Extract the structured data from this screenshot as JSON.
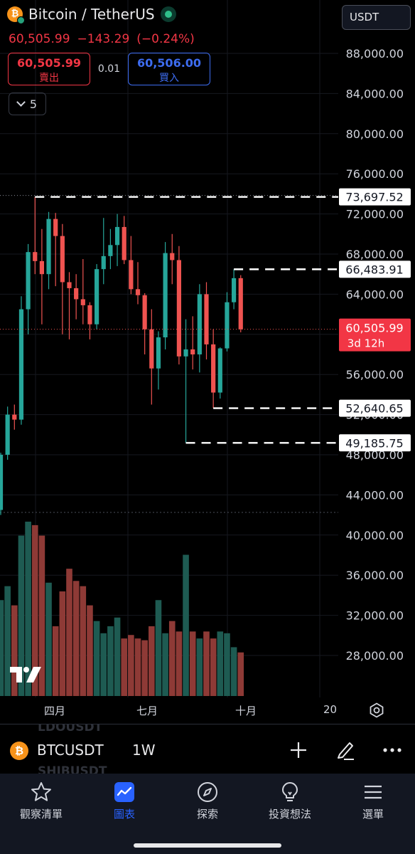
{
  "header": {
    "title": "Bitcoin / TetherUS",
    "last_price": "60,505.99",
    "change": "−143.29",
    "change_pct": "(−0.24%)",
    "currency": "USDT",
    "collapse_count": "5"
  },
  "order": {
    "sell_price": "60,505.99",
    "sell_label": "賣出",
    "spread": "0.01",
    "buy_price": "60,506.00",
    "buy_label": "買入"
  },
  "colors": {
    "up": "#26a69a",
    "down": "#ef5350",
    "up_volume": "#1e5b52",
    "down_volume": "#8e3a36",
    "accent": "#2962ff"
  },
  "price_axis": {
    "ticks": [
      "88,000.00",
      "84,000.00",
      "80,000.00",
      "76,000.00",
      "72,000.00",
      "68,000.00",
      "64,000.00",
      "60,000.00",
      "56,000.00",
      "52,000.00",
      "48,000.00",
      "44,000.00",
      "40,000.00",
      "36,000.00",
      "32,000.00",
      "28,000.00"
    ]
  },
  "price_labels": {
    "high": "73,697.52",
    "recent_high": "66,483.91",
    "current": "60,505.99",
    "countdown": "3d 12h",
    "recent_low": "52,640.65",
    "low": "49,185.75"
  },
  "time_axis": {
    "labels": [
      "四月",
      "七月",
      "十月",
      "20"
    ]
  },
  "chart_data": {
    "type": "candlestick",
    "interval": "1W",
    "symbol": "BTCUSDT",
    "price_range": [
      42000,
      90000
    ],
    "candles": [
      {
        "o": 42500,
        "h": 48200,
        "l": 42000,
        "c": 48000
      },
      {
        "o": 48000,
        "h": 52800,
        "l": 47500,
        "c": 52000
      },
      {
        "o": 52000,
        "h": 53000,
        "l": 50500,
        "c": 51500
      },
      {
        "o": 51500,
        "h": 63800,
        "l": 51000,
        "c": 62500
      },
      {
        "o": 62500,
        "h": 69000,
        "l": 60000,
        "c": 68200
      },
      {
        "o": 68200,
        "h": 73697.52,
        "l": 66000,
        "c": 67300
      },
      {
        "o": 67300,
        "h": 70500,
        "l": 61000,
        "c": 66000
      },
      {
        "o": 66000,
        "h": 72200,
        "l": 64500,
        "c": 71500
      },
      {
        "o": 71500,
        "h": 72100,
        "l": 64800,
        "c": 69800
      },
      {
        "o": 69800,
        "h": 71000,
        "l": 60000,
        "c": 65200
      },
      {
        "o": 65200,
        "h": 66200,
        "l": 59500,
        "c": 64600
      },
      {
        "o": 64600,
        "h": 66000,
        "l": 61500,
        "c": 63500
      },
      {
        "o": 63500,
        "h": 67500,
        "l": 61000,
        "c": 62900
      },
      {
        "o": 62900,
        "h": 63200,
        "l": 59500,
        "c": 61000
      },
      {
        "o": 61000,
        "h": 67000,
        "l": 60500,
        "c": 66500
      },
      {
        "o": 66500,
        "h": 71600,
        "l": 65000,
        "c": 67800
      },
      {
        "o": 67800,
        "h": 70500,
        "l": 66500,
        "c": 68900
      },
      {
        "o": 68900,
        "h": 72000,
        "l": 66800,
        "c": 70700
      },
      {
        "o": 70700,
        "h": 71800,
        "l": 67000,
        "c": 67400
      },
      {
        "o": 67400,
        "h": 69800,
        "l": 64000,
        "c": 64500
      },
      {
        "o": 64500,
        "h": 67200,
        "l": 63000,
        "c": 63900
      },
      {
        "o": 63900,
        "h": 64100,
        "l": 58000,
        "c": 60500
      },
      {
        "o": 60500,
        "h": 62500,
        "l": 53000,
        "c": 56600
      },
      {
        "o": 56600,
        "h": 60300,
        "l": 54500,
        "c": 59700
      },
      {
        "o": 59700,
        "h": 69200,
        "l": 58500,
        "c": 68100
      },
      {
        "o": 68100,
        "h": 70000,
        "l": 65000,
        "c": 67400
      },
      {
        "o": 67400,
        "h": 68800,
        "l": 57000,
        "c": 57800
      },
      {
        "o": 57800,
        "h": 61500,
        "l": 49185.75,
        "c": 58500
      },
      {
        "o": 58500,
        "h": 61800,
        "l": 56500,
        "c": 58000
      },
      {
        "o": 58000,
        "h": 65000,
        "l": 56200,
        "c": 64000
      },
      {
        "o": 64000,
        "h": 65200,
        "l": 57500,
        "c": 59000
      },
      {
        "o": 59000,
        "h": 60500,
        "l": 52640.65,
        "c": 54200
      },
      {
        "o": 54200,
        "h": 58700,
        "l": 53600,
        "c": 58600
      },
      {
        "o": 58600,
        "h": 64200,
        "l": 58300,
        "c": 63200
      },
      {
        "o": 63200,
        "h": 66483.91,
        "l": 62500,
        "c": 65600
      },
      {
        "o": 65600,
        "h": 65900,
        "l": 60200,
        "c": 60505.99
      }
    ],
    "volume_relative": [
      0.55,
      0.63,
      0.52,
      0.92,
      1.0,
      0.98,
      0.92,
      0.65,
      0.4,
      0.6,
      0.73,
      0.66,
      0.63,
      0.52,
      0.43,
      0.36,
      0.4,
      0.45,
      0.33,
      0.35,
      0.33,
      0.32,
      0.4,
      0.55,
      0.36,
      0.43,
      0.37,
      0.81,
      0.37,
      0.33,
      0.37,
      0.33,
      0.37,
      0.36,
      0.28,
      0.25
    ]
  },
  "symbol_bar": {
    "symbol": "BTCUSDT",
    "interval": "1W",
    "ghost_top": "LDOUSDT",
    "ghost_bottom": "SHIBUSDT"
  },
  "nav": {
    "items": [
      {
        "label": "觀察清單",
        "icon": "star-icon"
      },
      {
        "label": "圖表",
        "icon": "chart-icon"
      },
      {
        "label": "探索",
        "icon": "compass-icon"
      },
      {
        "label": "投資想法",
        "icon": "lightbulb-icon"
      },
      {
        "label": "選單",
        "icon": "menu-icon"
      }
    ]
  }
}
